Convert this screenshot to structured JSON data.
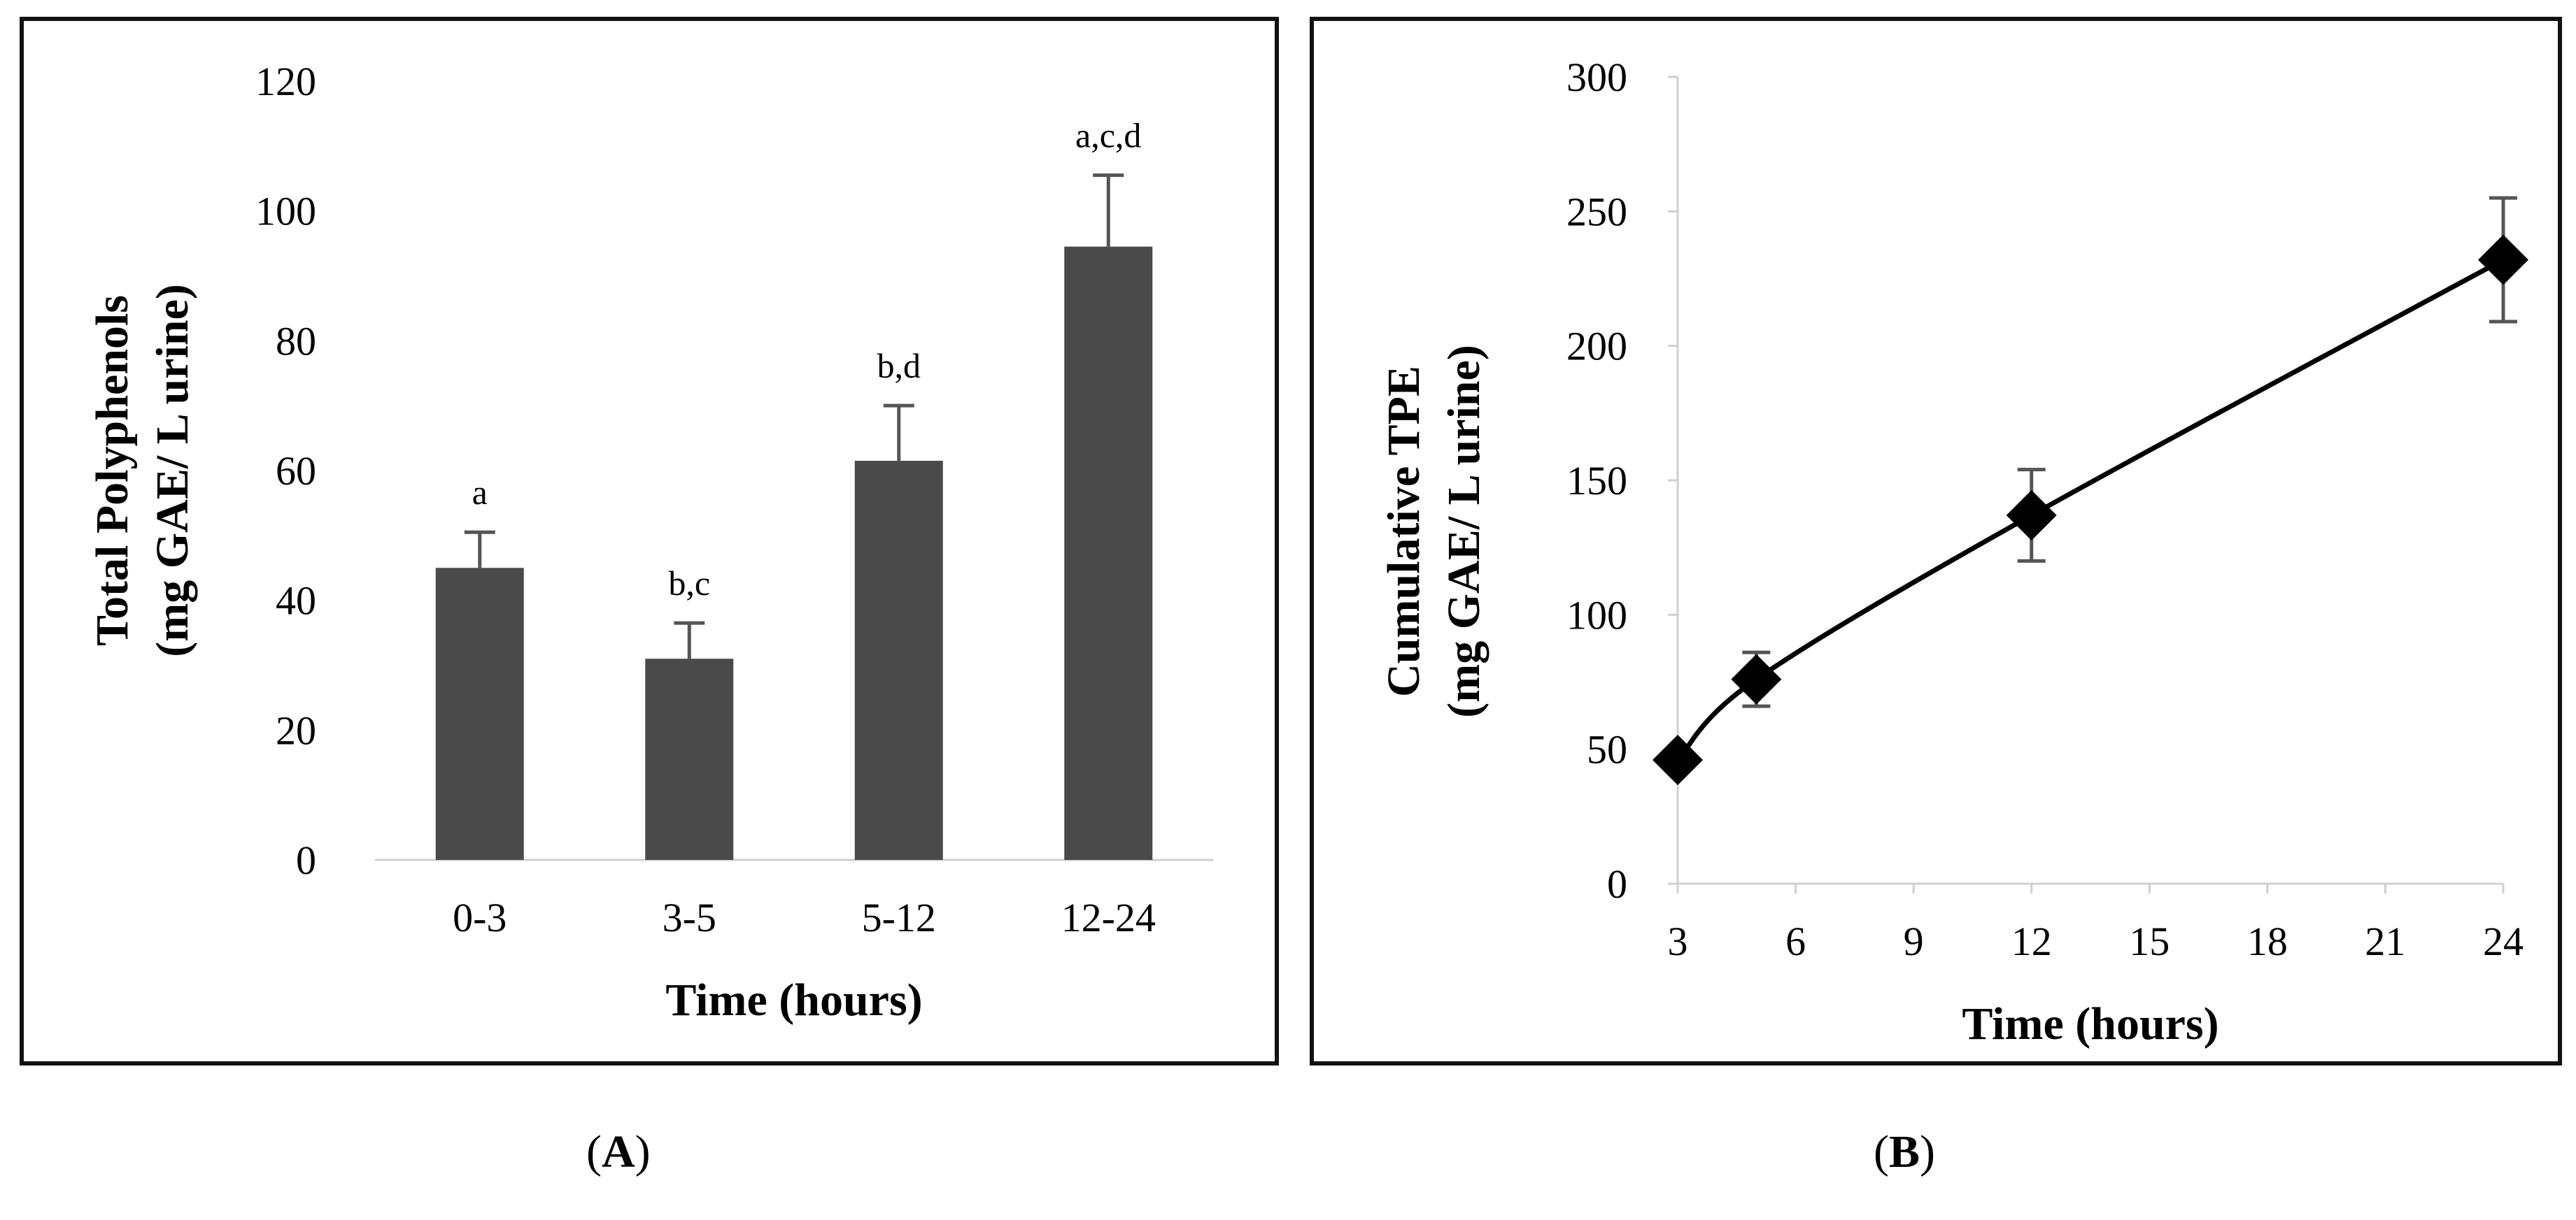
{
  "chart_data": [
    {
      "panel": "A",
      "type": "bar",
      "title": "",
      "categories": [
        "0-3",
        "3-5",
        "5-12",
        "12-24"
      ],
      "values": [
        45,
        31,
        61.5,
        94.5
      ],
      "errors": [
        5.5,
        5.5,
        8.5,
        11
      ],
      "significance_labels": [
        "a",
        "b,c",
        "b,d",
        "a,c,d"
      ],
      "xlabel": "Time (hours)",
      "ylabel_line1": "Total Polyphenols",
      "ylabel_line2": "(mg GAE/ L urine)",
      "ylim": [
        0,
        120
      ],
      "yticks": [
        0,
        20,
        40,
        60,
        80,
        100,
        120
      ],
      "grid": false,
      "bar_color": "#4a4a4a"
    },
    {
      "panel": "B",
      "type": "line",
      "title": "",
      "x": [
        3,
        5,
        12,
        24
      ],
      "y": [
        46,
        76,
        137,
        232
      ],
      "errors": [
        0,
        10,
        17,
        23
      ],
      "marker": "diamond",
      "xlabel": "Time (hours)",
      "ylabel_line1": "Cumulative TPE",
      "ylabel_line2": "(mg GAE/ L urine)",
      "xlim": [
        3,
        24
      ],
      "ylim": [
        0,
        300
      ],
      "xticks": [
        3,
        6,
        9,
        12,
        15,
        18,
        21,
        24
      ],
      "yticks": [
        0,
        50,
        100,
        150,
        200,
        250,
        300
      ],
      "grid": false,
      "line_color": "#000000"
    }
  ],
  "labels": {
    "a": "A",
    "b": "B"
  },
  "colors": {
    "axis": "#d0d0d0",
    "text": "#000000",
    "error_bar": "#555555"
  }
}
